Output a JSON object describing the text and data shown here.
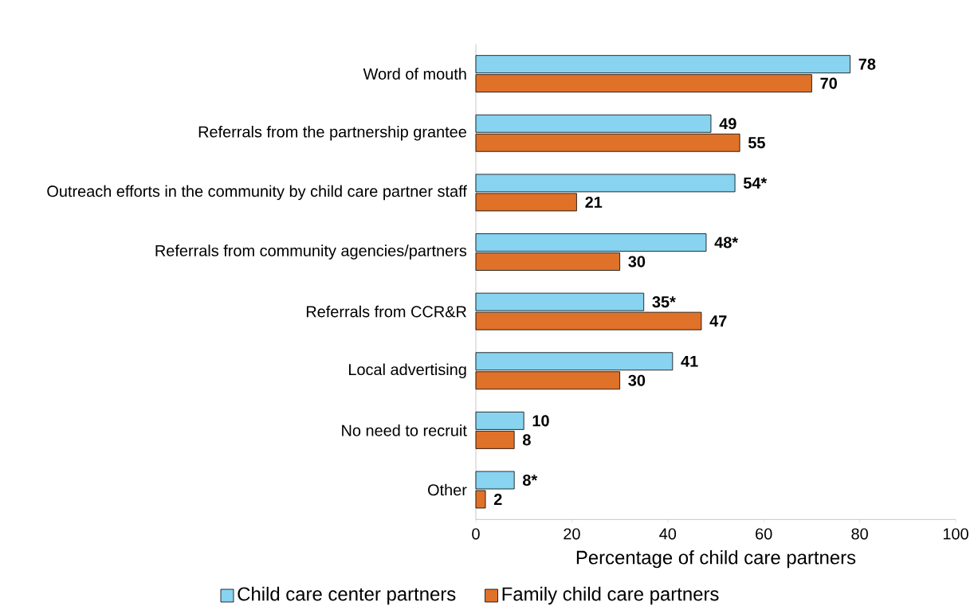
{
  "chart_data": {
    "type": "bar",
    "orientation": "horizontal",
    "xlabel": "Percentage of child care partners",
    "categories": [
      "Word of mouth",
      "Referrals from the partnership grantee",
      "Outreach efforts in the community by child care partner staff",
      "Referrals from community agencies/partners",
      "Referrals from CCR&R",
      "Local advertising",
      "No need to recruit",
      "Other"
    ],
    "series": [
      {
        "name": "Child care center partners",
        "color": "#87d3f0",
        "values": [
          78,
          49,
          54,
          48,
          35,
          41,
          10,
          8
        ],
        "value_labels": [
          "78",
          "49",
          "54*",
          "48*",
          "35*",
          "41",
          "10",
          "8*"
        ]
      },
      {
        "name": "Family child care partners",
        "color": "#e07128",
        "values": [
          70,
          55,
          21,
          30,
          47,
          30,
          8,
          2
        ],
        "value_labels": [
          "70",
          "55",
          "21",
          "30",
          "47",
          "30",
          "8",
          "2"
        ]
      }
    ],
    "xlim": [
      0,
      100
    ],
    "xticks": [
      0,
      20,
      40,
      60,
      80,
      100
    ],
    "legend": "bottom"
  }
}
